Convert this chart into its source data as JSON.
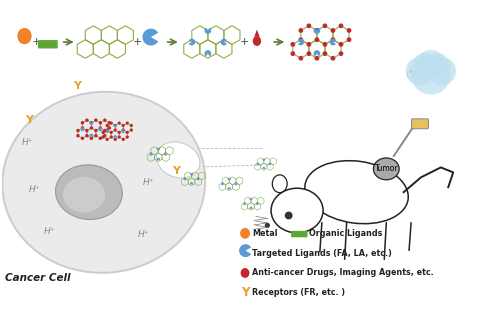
{
  "bg_color": "#FFFFFF",
  "cloud_color": "#BDE0F0",
  "nmof_hex_color": "#8AAA40",
  "nmof_dot_color": "#C0282A",
  "nmof_link_color": "#5B9BD5",
  "metal_color": "#F0822A",
  "ligand_color": "#5DA832",
  "drug_color": "#C0282A",
  "receptor_color": "#E8A020",
  "cell_fill": "#EBEBEB",
  "cell_edge": "#CCCCCC",
  "nucleus_fill": "#AAAAAA",
  "nucleus_edge": "#999999",
  "mouse_fill": "#FFFFFF",
  "mouse_edge": "#222222",
  "tumor_fill": "#AAAAAA",
  "hplus_color": "#888888",
  "arrow_color": "#5B7B35",
  "legend_metal": "Metal",
  "legend_ligand": "Organic Ligands",
  "legend_targeted": "Targeted Ligands (FA, LA, etc.)",
  "legend_drug": "Anti-cancer Drugs, Imaging Agents, etc.",
  "legend_receptor": "Receptors (FR, etc. )",
  "cell_label": "Cancer Cell",
  "tumor_label": "Tumor"
}
